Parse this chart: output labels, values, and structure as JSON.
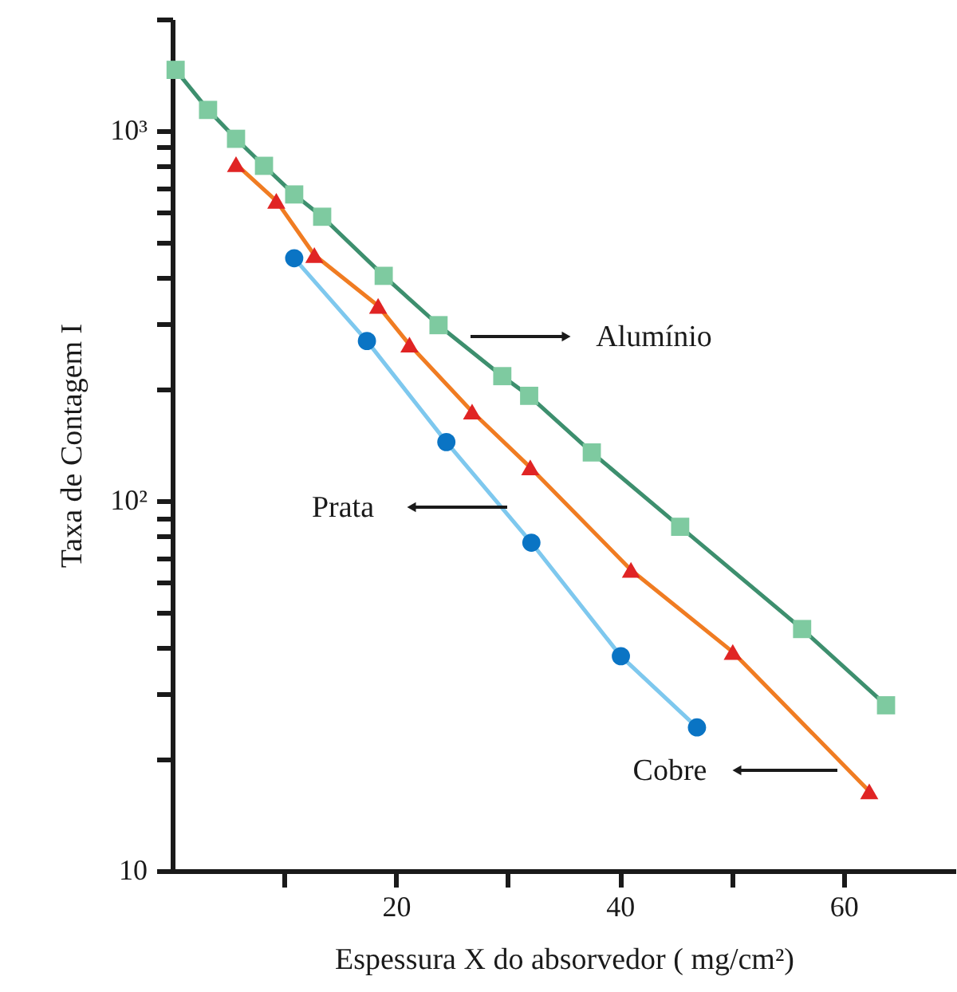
{
  "chart_data": {
    "type": "scatter",
    "xlabel": "Espessura X do absorvedor ( mg/cm²)",
    "ylabel": "Taxa de Contagem I",
    "xlim": [
      0,
      70
    ],
    "xticks": [
      {
        "value": 10,
        "label": null
      },
      20,
      {
        "value": 30,
        "label": null
      },
      40,
      {
        "value": 50,
        "label": null
      },
      60
    ],
    "ylim": [
      10,
      2000
    ],
    "yticks": [
      10,
      {
        "value": 20,
        "label": null
      },
      {
        "value": 30,
        "label": null
      },
      {
        "value": 40,
        "label": null
      },
      {
        "value": 50,
        "label": null
      },
      {
        "value": 60,
        "label": null
      },
      {
        "value": 70,
        "label": null
      },
      {
        "value": 80,
        "label": null
      },
      {
        "value": 90,
        "label": null
      },
      {
        "value": 100,
        "label": "10²"
      },
      {
        "value": 200,
        "label": null
      },
      {
        "value": 300,
        "label": null
      },
      {
        "value": 400,
        "label": null
      },
      {
        "value": 500,
        "label": null
      },
      {
        "value": 600,
        "label": null
      },
      {
        "value": 700,
        "label": null
      },
      {
        "value": 800,
        "label": null
      },
      {
        "value": 900,
        "label": null
      },
      {
        "value": 1000,
        "label": "10³"
      },
      {
        "value": 2000,
        "label": null
      }
    ],
    "log": "y",
    "grid": false,
    "series": [
      {
        "type": "line",
        "color": "#3d8f6e",
        "marker": "none",
        "x": [
          0.3,
          3.2,
          5.7,
          8.2,
          10.9,
          13.4,
          18.9,
          23.8,
          29.5,
          31.9,
          37.5,
          45.4,
          56.3,
          63.8
        ],
        "values": [
          1459,
          1137,
          950,
          803,
          672,
          585,
          405,
          298,
          217,
          192,
          135,
          85,
          45,
          28
        ]
      },
      {
        "type": "line",
        "color": "#f07c22",
        "marker": "none",
        "x": [
          5.7,
          9.3,
          12.7,
          18.4,
          21.2,
          26.8,
          32.0,
          41.0,
          50.1,
          62.3
        ],
        "values": [
          811,
          646,
          461,
          336,
          264,
          174,
          123,
          65,
          39,
          16.4
        ]
      },
      {
        "type": "line",
        "color": "#7ec8ee",
        "marker": "none",
        "x": [
          10.9,
          17.4,
          24.5,
          32.1,
          40.1,
          46.9
        ],
        "values": [
          452,
          270,
          144,
          77,
          38,
          24.4
        ]
      },
      {
        "color": "#7ecaa0",
        "marker": "square",
        "x": [
          0.3,
          3.2,
          5.7,
          8.2,
          10.9,
          13.4,
          18.9,
          23.8,
          29.5,
          31.9,
          37.5,
          45.4,
          56.3,
          63.8
        ],
        "values": [
          1459,
          1137,
          950,
          803,
          672,
          585,
          405,
          298,
          217,
          192,
          135,
          85,
          45,
          28
        ]
      },
      {
        "color": "#e02424",
        "marker": "triangle",
        "x": [
          5.7,
          9.3,
          12.7,
          18.4,
          21.2,
          26.8,
          32.0,
          41.0,
          50.1,
          62.3
        ],
        "values": [
          811,
          646,
          461,
          336,
          264,
          174,
          123,
          65,
          39,
          16.4
        ]
      },
      {
        "color": "#0a74c4",
        "marker": "circle",
        "x": [
          10.9,
          17.4,
          24.5,
          32.1,
          40.1,
          46.9
        ],
        "values": [
          452,
          270,
          144,
          77,
          38,
          24.4
        ]
      }
    ],
    "annotations": [
      "Alumínio",
      "Prata",
      "Cobre"
    ]
  }
}
